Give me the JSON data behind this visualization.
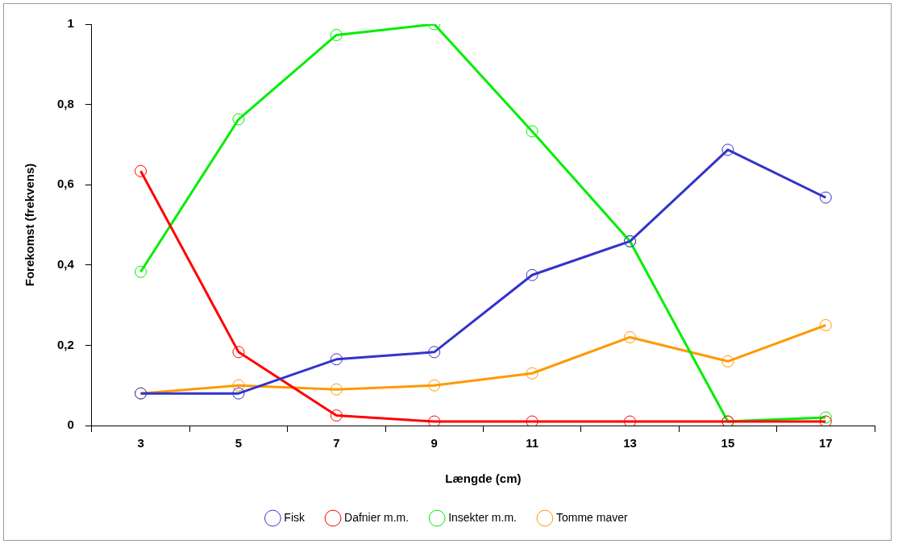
{
  "chart_data": {
    "type": "line",
    "xlabel": "Længde (cm)",
    "ylabel": "Forekomst (frekvens)",
    "categories": [
      "3",
      "5",
      "7",
      "9",
      "11",
      "13",
      "15",
      "17"
    ],
    "series": [
      {
        "name": "Fisk",
        "color": "#3333cc",
        "values": [
          0.08,
          0.08,
          0.165,
          0.183,
          0.375,
          0.459,
          0.687,
          0.568
        ]
      },
      {
        "name": "Dafnier m.m.",
        "color": "#ff0000",
        "values": [
          0.634,
          0.183,
          0.025,
          0.01,
          0.01,
          0.01,
          0.01,
          0.01
        ]
      },
      {
        "name": "Insekter m.m.",
        "color": "#00ee00",
        "values": [
          0.383,
          0.763,
          0.973,
          1.0,
          0.733,
          0.459,
          0.01,
          0.02
        ]
      },
      {
        "name": "Tomme maver",
        "color": "#ff9900",
        "values": [
          0.08,
          0.1,
          0.09,
          0.1,
          0.13,
          0.22,
          0.16,
          0.25
        ]
      }
    ],
    "ylim": [
      0,
      1
    ],
    "yticks": [
      0,
      {
        "value": 0.2,
        "label": "0,2"
      },
      {
        "value": 0.4,
        "label": "0,4"
      },
      {
        "value": 0.6,
        "label": "0,6"
      },
      {
        "value": 0.8,
        "label": "0,8"
      },
      1
    ],
    "grid": false,
    "legend": "bottom",
    "marker": "circle",
    "line_style": "solid"
  }
}
